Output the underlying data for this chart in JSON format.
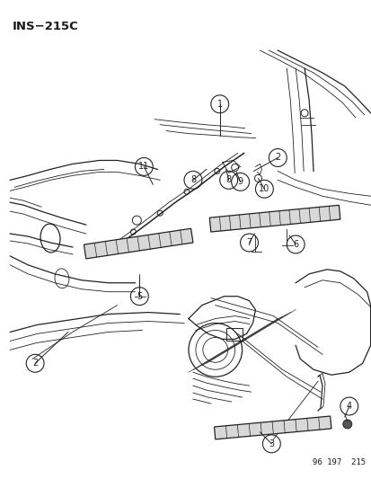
{
  "title": "INS−215C",
  "footer": "96 197  215",
  "background_color": "#ffffff",
  "text_color": "#1a1a1a",
  "line_color": "#222222"
}
